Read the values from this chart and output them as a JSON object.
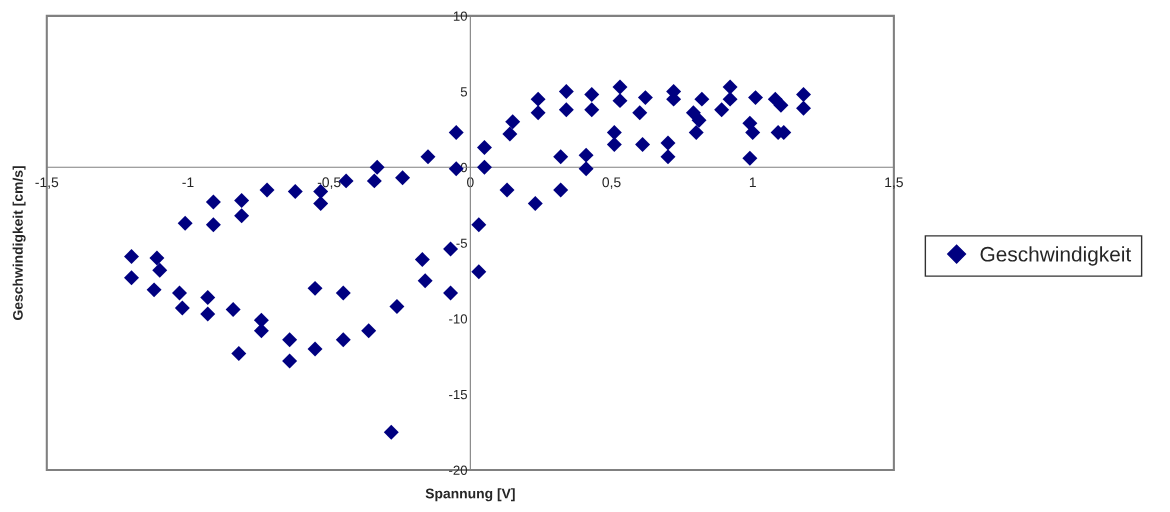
{
  "chart_data": {
    "type": "scatter",
    "xlabel": "Spannung [V]",
    "ylabel": "Geschwindigkeit [cm/s]",
    "xlim": [
      -1.5,
      1.5
    ],
    "ylim": [
      -20,
      10
    ],
    "xticks": [
      {
        "value": -1.5,
        "label": "-1,5"
      },
      -1,
      {
        "value": -0.5,
        "label": "-0,5"
      },
      0,
      {
        "value": 0.5,
        "label": "0,5"
      },
      1,
      {
        "value": 1.5,
        "label": "1,5"
      }
    ],
    "yticks": [
      -20,
      -15,
      -10,
      -5,
      0,
      5,
      10
    ],
    "grid": false,
    "legend": "right",
    "marker": "diamond",
    "series": [
      {
        "name": "Geschwindigkeit",
        "color": "#000080",
        "x": [
          -1.2,
          -1.2,
          -1.11,
          -1.1,
          -1.12,
          -1.03,
          -1.02,
          -0.93,
          -0.93,
          -0.84,
          -0.82,
          -0.74,
          -0.74,
          -0.64,
          -0.64,
          -0.55,
          -0.55,
          -0.45,
          -0.45,
          -0.36,
          -0.26,
          -0.28,
          -0.16,
          -0.17,
          -0.07,
          -0.07,
          0.03,
          0.03,
          0.13,
          0.23,
          0.32,
          -1.01,
          -0.91,
          -0.91,
          -0.81,
          -0.81,
          -0.72,
          -0.62,
          -0.53,
          -0.53,
          -0.44,
          -0.33,
          -0.34,
          -0.24,
          -0.15,
          -0.05,
          -0.05,
          0.05,
          0.05,
          0.15,
          0.14,
          0.24,
          0.24,
          0.32,
          0.34,
          0.34,
          0.41,
          0.41,
          0.43,
          0.43,
          0.51,
          0.51,
          0.53,
          0.53,
          0.6,
          0.61,
          0.62,
          0.7,
          0.7,
          0.72,
          0.72,
          0.8,
          0.79,
          0.81,
          0.82,
          0.89,
          0.92,
          0.92,
          0.99,
          1.0,
          0.99,
          1.01,
          1.08,
          1.1,
          1.09,
          1.11,
          1.18,
          1.18
        ],
        "values": [
          -5.9,
          -7.3,
          -6.0,
          -6.8,
          -8.1,
          -8.3,
          -9.3,
          -8.6,
          -9.7,
          -9.4,
          -12.3,
          -10.1,
          -10.8,
          -11.4,
          -12.8,
          -8.0,
          -12.0,
          -8.3,
          -11.4,
          -10.8,
          -9.2,
          -17.5,
          -7.5,
          -6.1,
          -8.3,
          -5.4,
          -3.8,
          -6.9,
          -1.5,
          -2.4,
          -1.5,
          -3.7,
          -2.3,
          -3.8,
          -2.2,
          -3.2,
          -1.5,
          -1.6,
          -1.6,
          -2.4,
          -0.9,
          0.0,
          -0.9,
          -0.7,
          0.7,
          -0.1,
          2.3,
          1.3,
          0.0,
          3.0,
          2.2,
          4.5,
          3.6,
          0.7,
          5.0,
          3.8,
          0.8,
          -0.1,
          4.8,
          3.8,
          2.3,
          1.5,
          5.3,
          4.4,
          3.6,
          1.5,
          4.6,
          1.6,
          0.7,
          5.0,
          4.5,
          2.3,
          3.6,
          3.1,
          4.5,
          3.8,
          5.3,
          4.5,
          2.9,
          2.3,
          0.6,
          4.6,
          4.5,
          4.1,
          2.3,
          2.3,
          4.8,
          3.9
        ]
      }
    ]
  }
}
